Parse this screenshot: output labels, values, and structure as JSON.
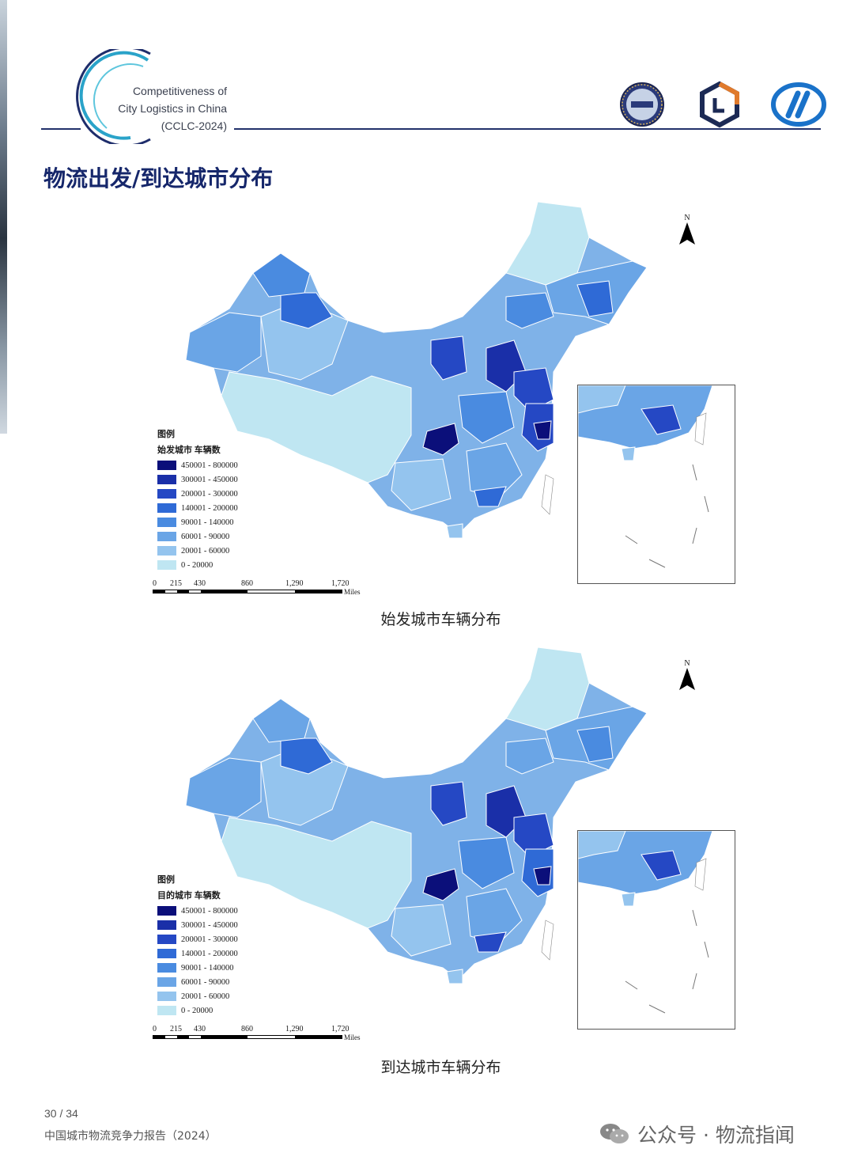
{
  "header": {
    "logo_lines": [
      "Competitiveness  of",
      "City Logistics in China",
      "(CCLC-2024)"
    ]
  },
  "page_title": "物流出发/到达城市分布",
  "legend_colors": [
    "#0b0f7a",
    "#1a2fa8",
    "#2548c4",
    "#2f6ad6",
    "#4a8be0",
    "#6aa5e6",
    "#94c4ee",
    "#bfe6f2"
  ],
  "map_top": {
    "legend_title": "图例",
    "legend_subtitle": "始发城市 车辆数",
    "legend_items": [
      "450001 - 800000",
      "300001 - 450000",
      "200001 - 300000",
      "140001 - 200000",
      "90001 - 140000",
      "60001 - 90000",
      "20001 - 60000",
      "0 - 20000"
    ],
    "north_label": "N",
    "scale_labels": [
      "0",
      "215",
      "430",
      "860",
      "1,290",
      "1,720"
    ],
    "scale_unit": "Miles",
    "caption": "始发城市车辆分布"
  },
  "map_bottom": {
    "legend_title": "图例",
    "legend_subtitle": "目的城市 车辆数",
    "legend_items": [
      "450001 - 800000",
      "300001 - 450000",
      "200001 - 300000",
      "140001 - 200000",
      "90001 - 140000",
      "60001 - 90000",
      "20001 - 60000",
      "0 - 20000"
    ],
    "north_label": "N",
    "scale_labels": [
      "0",
      "215",
      "430",
      "860",
      "1,290",
      "1,720"
    ],
    "scale_unit": "Miles",
    "caption": "到达城市车辆分布"
  },
  "footer": {
    "page": "30 / 34",
    "report": "中国城市物流竞争力报告（2024）",
    "wechat": "公众号 · 物流指闻"
  }
}
